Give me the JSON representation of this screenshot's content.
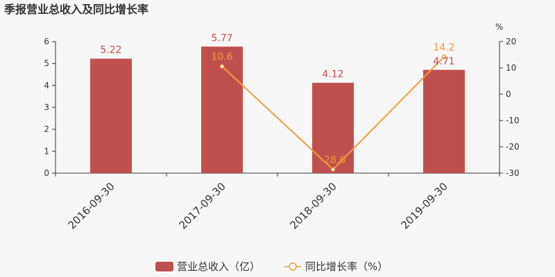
{
  "chart_data": {
    "type": "bar",
    "title": "季报营业总收入及同比增长率",
    "categories": [
      "2016-09-30",
      "2017-09-30",
      "2018-09-30",
      "2019-09-30"
    ],
    "series": [
      {
        "name": "营业总收入（亿）",
        "type": "bar",
        "axis": "left",
        "values": [
          5.22,
          5.77,
          4.12,
          4.71
        ],
        "labels": [
          "5.22",
          "5.77",
          "4.12",
          "4.71"
        ],
        "color": "#c0504d"
      },
      {
        "name": "同比增长率（%）",
        "type": "line",
        "axis": "right",
        "values": [
          null,
          10.6,
          -28.6,
          14.2
        ],
        "labels": [
          "",
          "10.6",
          "-28.6",
          "14.2"
        ],
        "color": "#f39a3c"
      }
    ],
    "y_left": {
      "ylim": [
        0,
        6
      ],
      "ticks": [
        "0",
        "1",
        "2",
        "3",
        "4",
        "5",
        "6"
      ]
    },
    "y_right": {
      "ylim": [
        -30,
        20
      ],
      "ticks": [
        "-30",
        "-20",
        "-10",
        "0",
        "10",
        "20"
      ],
      "unit": "%"
    },
    "grid": false,
    "legend": "bottom"
  }
}
